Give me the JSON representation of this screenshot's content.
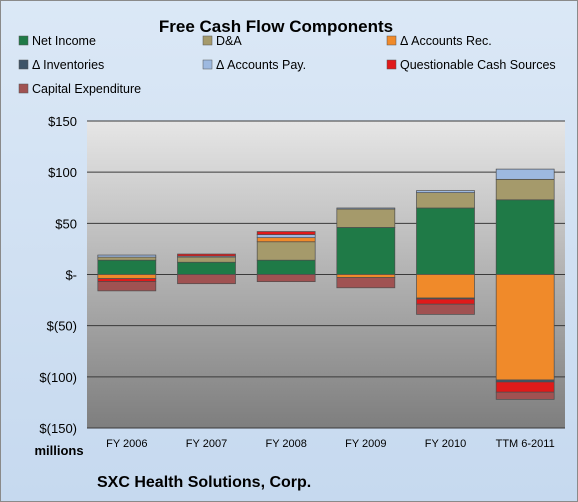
{
  "chart_data": {
    "type": "bar",
    "stacked": true,
    "title": "Free Cash Flow Components",
    "units_label": "millions",
    "footer": "SXC Health Solutions, Corp.",
    "categories": [
      "FY 2006",
      "FY 2007",
      "FY 2008",
      "FY 2009",
      "FY 2010",
      "TTM 6-2011"
    ],
    "ylim": [
      -150,
      150
    ],
    "yticks": [
      150,
      100,
      50,
      0,
      -50,
      -100,
      -150
    ],
    "ytick_labels": [
      "$150",
      "$100",
      "$50",
      "$-",
      "$(50)",
      "$(100)",
      "$(150)"
    ],
    "legend_placement": "top",
    "series": [
      {
        "name": "Net Income",
        "color": "#1f7a47",
        "values": [
          14,
          12,
          14,
          46,
          65,
          73
        ]
      },
      {
        "name": "D&A",
        "color": "#a59a6b",
        "values": [
          3,
          5,
          18,
          18,
          15,
          20
        ]
      },
      {
        "name": "Δ Accounts Rec.",
        "color": "#f08a2a",
        "values": [
          -4,
          0,
          4,
          -3,
          -23,
          -103
        ]
      },
      {
        "name": "Δ Inventories",
        "color": "#3f5568",
        "values": [
          0,
          0,
          0,
          0,
          -1,
          -2
        ]
      },
      {
        "name": "Δ Accounts Pay.",
        "color": "#9db9e0",
        "values": [
          2,
          1,
          3,
          1,
          2,
          10
        ]
      },
      {
        "name": "Questionable Cash Sources",
        "color": "#e01a1a",
        "values": [
          -3,
          2,
          3,
          0,
          -5,
          -10
        ]
      },
      {
        "name": "Capital Expenditure",
        "color": "#a05252",
        "values": [
          -9,
          -9,
          -7,
          -10,
          -10,
          -7
        ]
      }
    ]
  }
}
